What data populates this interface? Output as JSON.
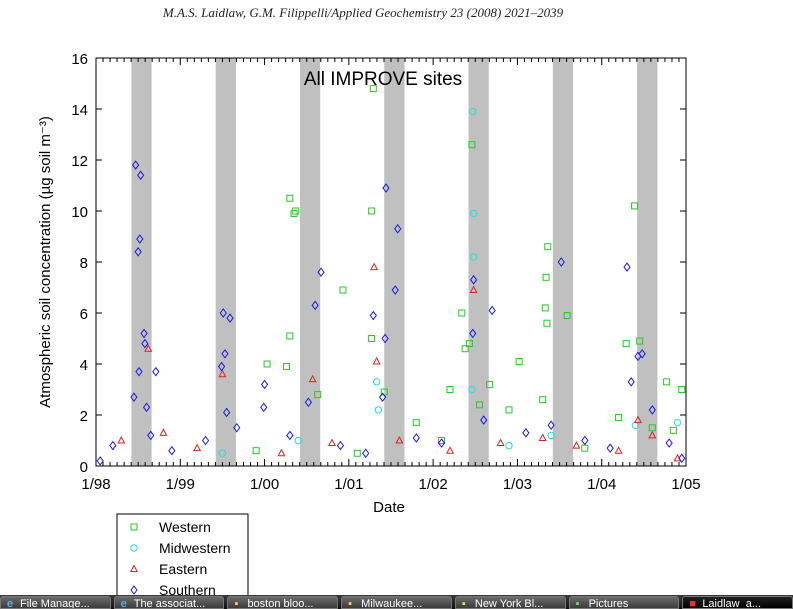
{
  "header": "M.A.S. Laidlaw, G.M. Filippelli/Applied Geochemistry 23 (2008) 2021–2039",
  "chart_data": {
    "type": "scatter",
    "title": "All IMPROVE sites",
    "xlabel": "Date",
    "ylabel": "Atmospheric soil concentration (µg soil m⁻³)",
    "xlim": [
      1998.0,
      2005.0
    ],
    "ylim": [
      0,
      16
    ],
    "xticks": [
      {
        "v": 1998,
        "label": "1/98"
      },
      {
        "v": 1999,
        "label": "1/99"
      },
      {
        "v": 2000,
        "label": "1/00"
      },
      {
        "v": 2001,
        "label": "1/01"
      },
      {
        "v": 2002,
        "label": "1/02"
      },
      {
        "v": 2003,
        "label": "1/03"
      },
      {
        "v": 2004,
        "label": "1/04"
      },
      {
        "v": 2005,
        "label": "1/05"
      }
    ],
    "yticks": [
      0,
      2,
      4,
      6,
      8,
      10,
      12,
      14,
      16
    ],
    "shaded_periods": [
      [
        1998.42,
        1998.66
      ],
      [
        1999.42,
        1999.66
      ],
      [
        2000.42,
        2000.66
      ],
      [
        2001.42,
        2001.66
      ],
      [
        2002.42,
        2002.66
      ],
      [
        2003.42,
        2003.66
      ],
      [
        2004.42,
        2004.66
      ]
    ],
    "shade_color": "#c0c0c0",
    "grid": false,
    "legend_position": "below-left",
    "series": [
      {
        "name": "Western",
        "marker": "square",
        "color": "#22cc22",
        "points": [
          [
            2000.3,
            10.5
          ],
          [
            2000.35,
            9.9
          ],
          [
            2000.37,
            10.0
          ],
          [
            2000.3,
            5.1
          ],
          [
            2000.03,
            4.0
          ],
          [
            2000.26,
            3.9
          ],
          [
            2000.63,
            2.8
          ],
          [
            2000.93,
            6.9
          ],
          [
            2001.29,
            14.8
          ],
          [
            2001.27,
            10.0
          ],
          [
            2001.27,
            5.0
          ],
          [
            2001.42,
            2.9
          ],
          [
            2002.46,
            12.6
          ],
          [
            2002.34,
            6.0
          ],
          [
            2002.38,
            4.6
          ],
          [
            2002.43,
            4.8
          ],
          [
            2002.67,
            3.2
          ],
          [
            2003.02,
            4.1
          ],
          [
            2003.36,
            8.6
          ],
          [
            2003.34,
            7.4
          ],
          [
            2003.33,
            6.2
          ],
          [
            2003.35,
            5.6
          ],
          [
            2003.59,
            5.9
          ],
          [
            2003.3,
            2.6
          ],
          [
            2004.39,
            10.2
          ],
          [
            2004.29,
            4.8
          ],
          [
            2004.45,
            4.9
          ],
          [
            2004.77,
            3.3
          ],
          [
            2004.95,
            3.0
          ],
          [
            2004.2,
            1.9
          ],
          [
            2002.2,
            3.0
          ],
          [
            2002.9,
            2.2
          ],
          [
            2001.8,
            1.7
          ],
          [
            2002.1,
            1.0
          ],
          [
            1999.9,
            0.6
          ],
          [
            2001.1,
            0.5
          ],
          [
            2003.8,
            0.7
          ],
          [
            2004.6,
            1.5
          ],
          [
            2002.55,
            2.4
          ],
          [
            2004.85,
            1.4
          ]
        ]
      },
      {
        "name": "Midwestern",
        "marker": "circle",
        "color": "#22dddd",
        "points": [
          [
            2002.47,
            13.9
          ],
          [
            2002.48,
            9.9
          ],
          [
            2002.48,
            8.2
          ],
          [
            2001.33,
            3.3
          ],
          [
            2002.46,
            3.0
          ],
          [
            2001.35,
            2.2
          ],
          [
            2004.4,
            1.6
          ],
          [
            2003.4,
            1.2
          ],
          [
            2000.4,
            1.0
          ],
          [
            1999.5,
            0.5
          ],
          [
            2004.9,
            1.7
          ],
          [
            2002.9,
            0.8
          ]
        ]
      },
      {
        "name": "Eastern",
        "marker": "triangle",
        "color": "#e02020",
        "points": [
          [
            2001.3,
            7.8
          ],
          [
            1998.62,
            4.6
          ],
          [
            1999.5,
            3.6
          ],
          [
            2000.57,
            3.4
          ],
          [
            2002.48,
            6.9
          ],
          [
            2001.33,
            4.1
          ],
          [
            2004.43,
            1.8
          ],
          [
            1998.3,
            1.0
          ],
          [
            1998.8,
            1.3
          ],
          [
            1999.2,
            0.7
          ],
          [
            2000.2,
            0.5
          ],
          [
            2000.8,
            0.9
          ],
          [
            2001.6,
            1.0
          ],
          [
            2002.2,
            0.6
          ],
          [
            2002.8,
            0.9
          ],
          [
            2003.3,
            1.1
          ],
          [
            2003.7,
            0.8
          ],
          [
            2004.2,
            0.6
          ],
          [
            2004.6,
            1.2
          ],
          [
            2004.9,
            0.3
          ]
        ]
      },
      {
        "name": "Southern",
        "marker": "diamond",
        "color": "#1a1ae0",
        "points": [
          [
            1998.47,
            11.8
          ],
          [
            1998.53,
            11.4
          ],
          [
            1998.52,
            8.9
          ],
          [
            1998.5,
            8.4
          ],
          [
            1998.57,
            5.2
          ],
          [
            1998.58,
            4.8
          ],
          [
            1998.51,
            3.7
          ],
          [
            1998.71,
            3.7
          ],
          [
            1998.45,
            2.7
          ],
          [
            1998.6,
            2.3
          ],
          [
            1998.65,
            1.2
          ],
          [
            1999.51,
            6.0
          ],
          [
            1999.59,
            5.8
          ],
          [
            1999.53,
            4.4
          ],
          [
            1999.49,
            3.9
          ],
          [
            1999.55,
            2.1
          ],
          [
            1999.67,
            1.5
          ],
          [
            2000.0,
            3.2
          ],
          [
            1999.99,
            2.3
          ],
          [
            2000.6,
            6.3
          ],
          [
            2000.67,
            7.6
          ],
          [
            2000.52,
            2.5
          ],
          [
            2001.44,
            10.9
          ],
          [
            2001.58,
            9.3
          ],
          [
            2001.55,
            6.9
          ],
          [
            2001.29,
            5.9
          ],
          [
            2001.43,
            5.0
          ],
          [
            2001.4,
            2.7
          ],
          [
            2002.48,
            7.3
          ],
          [
            2002.7,
            6.1
          ],
          [
            2002.47,
            5.2
          ],
          [
            2003.52,
            8.0
          ],
          [
            2004.3,
            7.8
          ],
          [
            2004.43,
            4.3
          ],
          [
            2004.48,
            4.4
          ],
          [
            2004.35,
            3.3
          ],
          [
            2004.6,
            2.2
          ],
          [
            1998.2,
            0.8
          ],
          [
            1998.9,
            0.6
          ],
          [
            1999.3,
            1.0
          ],
          [
            2000.3,
            1.2
          ],
          [
            2000.9,
            0.8
          ],
          [
            2001.2,
            0.5
          ],
          [
            2001.8,
            1.1
          ],
          [
            2002.1,
            0.9
          ],
          [
            2002.6,
            1.8
          ],
          [
            2003.1,
            1.3
          ],
          [
            2003.4,
            1.6
          ],
          [
            2003.8,
            1.0
          ],
          [
            2004.1,
            0.7
          ],
          [
            2004.8,
            0.9
          ],
          [
            1998.05,
            0.2
          ],
          [
            2004.95,
            0.3
          ]
        ]
      }
    ]
  },
  "taskbar": [
    {
      "label": "File Manage...",
      "icon": "ie-icon"
    },
    {
      "label": "The associat...",
      "icon": "ie-icon"
    },
    {
      "label": "boston bloo...",
      "icon": "folder-icon"
    },
    {
      "label": "Milwaukee...",
      "icon": "folder-icon"
    },
    {
      "label": "New York Bl...",
      "icon": "folder-icon"
    },
    {
      "label": "Pictures",
      "icon": "pictures-icon"
    },
    {
      "label": "Laidlaw_a...",
      "icon": "pdf-icon",
      "active": true
    }
  ]
}
